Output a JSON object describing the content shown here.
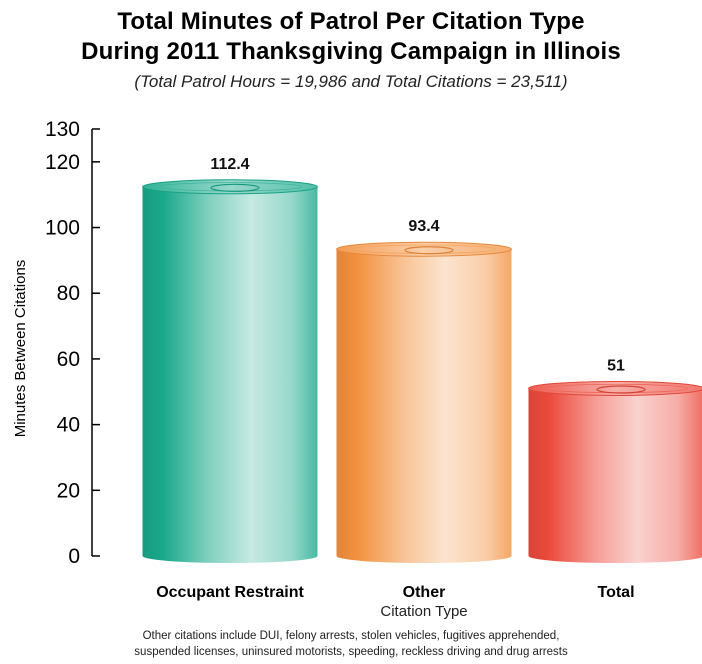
{
  "chart_data": {
    "type": "bar",
    "title_line1": "Total Minutes of Patrol Per Citation Type",
    "title_line2": "During 2011 Thanksgiving Campaign in Illinois",
    "subtitle": "(Total Patrol Hours = 19,986 and Total Citations = 23,511)",
    "xlabel": "Citation Type",
    "ylabel": "Minutes Between Citations",
    "categories": [
      "Occupant Restraint",
      "Other",
      "Total"
    ],
    "values": [
      112.4,
      93.4,
      51
    ],
    "data_labels": [
      "112.4",
      "93.4",
      "51"
    ],
    "ylim": [
      0,
      130
    ],
    "yticks": [
      0,
      20,
      40,
      60,
      80,
      100,
      120,
      130
    ],
    "ytick_labels": [
      "0",
      "20",
      "40",
      "60",
      "80",
      "100",
      "120",
      "130"
    ],
    "grid": false,
    "colors": [
      "#1aa98b",
      "#f3913f",
      "#ec4a3c"
    ],
    "note_line1": "Other citations include DUI, felony arrests, stolen vehicles, fugitives apprehended,",
    "note_line2": "suspended licenses, uninsured motorists, speeding, reckless driving and drug arrests"
  }
}
